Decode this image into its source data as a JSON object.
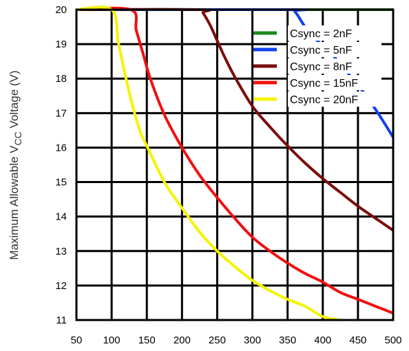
{
  "chart_data": {
    "type": "line",
    "title": "",
    "xlabel": "",
    "ylabel": {
      "prefix": "Maximum Allowable V",
      "subscript": "CC",
      "suffix": " Voltage (V)"
    },
    "xlim": [
      50,
      500
    ],
    "ylim": [
      11,
      20
    ],
    "xticks": [
      "50",
      "100",
      "150",
      "200",
      "250",
      "300",
      "350",
      "400",
      "450",
      "500"
    ],
    "yticks": [
      "11",
      "12",
      "13",
      "14",
      "15",
      "16",
      "17",
      "18",
      "19",
      "20"
    ],
    "grid": true,
    "legend_position": "top-right",
    "series": [
      {
        "name": "Csync = 2nF",
        "color": "#1a8a1a",
        "points": [
          [
            50,
            20
          ],
          [
            500,
            20
          ]
        ]
      },
      {
        "name": "Csync = 5nF",
        "color": "#1040f0",
        "points": [
          [
            50,
            20
          ],
          [
            350,
            20
          ],
          [
            360,
            19.95
          ],
          [
            370,
            19.65
          ],
          [
            380,
            19.35
          ],
          [
            400,
            18.95
          ],
          [
            420,
            18.55
          ],
          [
            440,
            18.05
          ],
          [
            460,
            17.55
          ],
          [
            480,
            16.95
          ],
          [
            500,
            16.3
          ]
        ]
      },
      {
        "name": "Csync = 8nF",
        "color": "#7a0c0c",
        "points": [
          [
            50,
            20
          ],
          [
            225,
            20
          ],
          [
            230,
            19.9
          ],
          [
            240,
            19.55
          ],
          [
            250,
            19.1
          ],
          [
            260,
            18.65
          ],
          [
            275,
            18.05
          ],
          [
            300,
            17.2
          ],
          [
            325,
            16.6
          ],
          [
            350,
            16.05
          ],
          [
            375,
            15.55
          ],
          [
            400,
            15.1
          ],
          [
            425,
            14.7
          ],
          [
            450,
            14.3
          ],
          [
            475,
            13.95
          ],
          [
            500,
            13.6
          ]
        ]
      },
      {
        "name": "Csync = 15nF",
        "color": "#f01010",
        "points": [
          [
            50,
            20
          ],
          [
            127,
            20
          ],
          [
            135,
            19.4
          ],
          [
            145,
            18.7
          ],
          [
            155,
            18.0
          ],
          [
            175,
            16.95
          ],
          [
            200,
            16.0
          ],
          [
            225,
            15.2
          ],
          [
            250,
            14.55
          ],
          [
            275,
            13.95
          ],
          [
            300,
            13.4
          ],
          [
            325,
            13.0
          ],
          [
            350,
            12.65
          ],
          [
            375,
            12.35
          ],
          [
            400,
            12.1
          ],
          [
            425,
            11.8
          ],
          [
            450,
            11.6
          ],
          [
            475,
            11.4
          ],
          [
            500,
            11.2
          ]
        ]
      },
      {
        "name": "Csync = 20nF",
        "color": "#f4f400",
        "points": [
          [
            50,
            20
          ],
          [
            100,
            20
          ],
          [
            110,
            19.0
          ],
          [
            125,
            17.6
          ],
          [
            140,
            16.5
          ],
          [
            150,
            16.05
          ],
          [
            175,
            15.0
          ],
          [
            200,
            14.25
          ],
          [
            225,
            13.55
          ],
          [
            250,
            13.0
          ],
          [
            275,
            12.55
          ],
          [
            300,
            12.15
          ],
          [
            325,
            11.85
          ],
          [
            350,
            11.6
          ],
          [
            375,
            11.4
          ],
          [
            400,
            11.1
          ],
          [
            425,
            11.0
          ]
        ]
      }
    ]
  }
}
